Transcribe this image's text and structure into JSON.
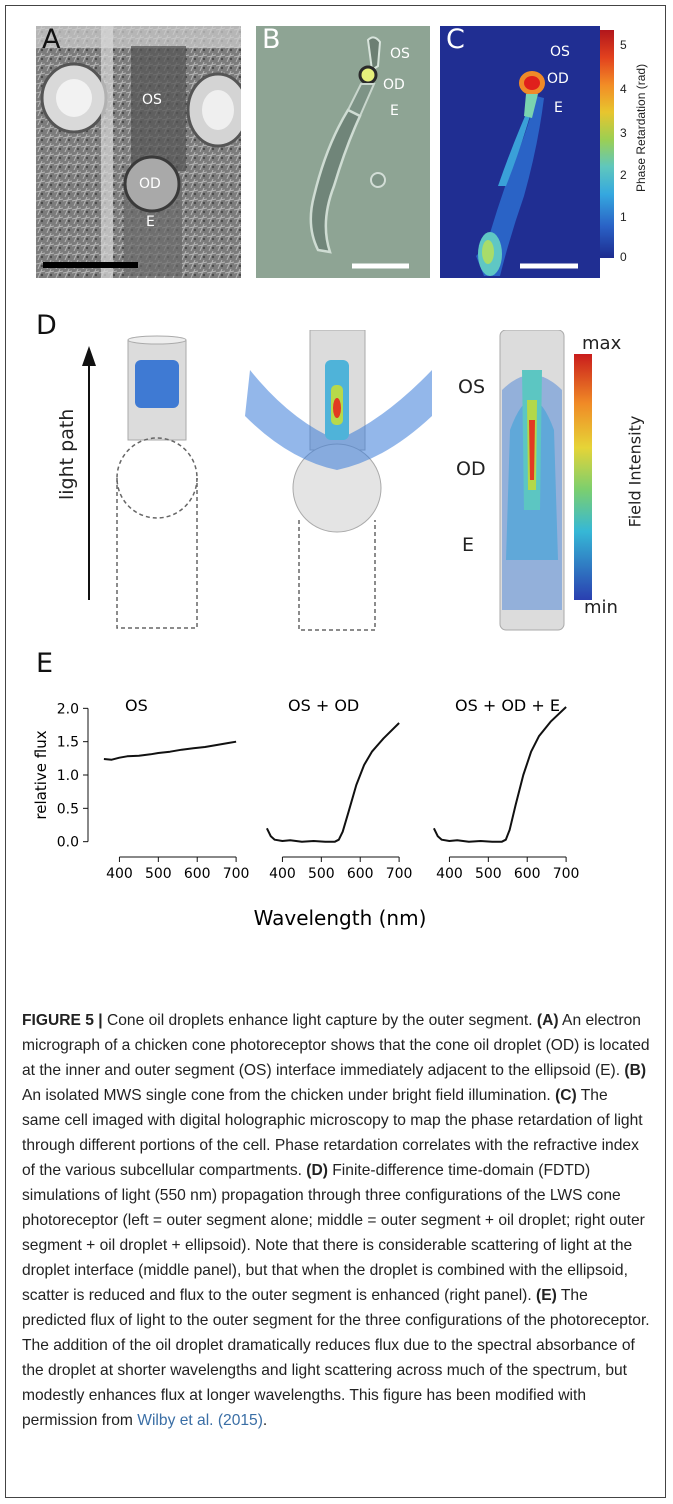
{
  "panels": {
    "A": {
      "label": "A",
      "os": "OS",
      "od": "OD",
      "e": "E"
    },
    "B": {
      "label": "B",
      "os": "OS",
      "od": "OD",
      "e": "E"
    },
    "C": {
      "label": "C",
      "os": "OS",
      "od": "OD",
      "e": "E",
      "colorbar_title": "Phase Retardation (rad)",
      "colorbar_ticks": [
        "5",
        "4",
        "3",
        "2",
        "1",
        "0"
      ]
    },
    "D": {
      "label": "D",
      "axis_label": "light path",
      "os": "OS",
      "od": "OD",
      "e": "E",
      "colorbar_title": "Field Intensity",
      "colorbar_max": "max",
      "colorbar_min": "min"
    },
    "E": {
      "label": "E"
    }
  },
  "chart_data": [
    {
      "type": "line",
      "title": "OS",
      "xlabel": "Wavelength (nm)",
      "ylabel": "relative flux",
      "xlim": [
        350,
        710
      ],
      "ylim": [
        -0.05,
        2.05
      ],
      "xticks": [
        400,
        500,
        600,
        700
      ],
      "yticks": [
        0.0,
        0.5,
        1.0,
        1.5,
        2.0
      ],
      "x": [
        360,
        380,
        400,
        420,
        450,
        480,
        500,
        530,
        560,
        590,
        620,
        650,
        680,
        700
      ],
      "y": [
        1.24,
        1.23,
        1.26,
        1.28,
        1.29,
        1.31,
        1.33,
        1.35,
        1.38,
        1.4,
        1.42,
        1.45,
        1.48,
        1.5
      ]
    },
    {
      "type": "line",
      "title": "OS + OD",
      "xlabel": "Wavelength (nm)",
      "ylabel": "",
      "xlim": [
        350,
        710
      ],
      "ylim": [
        -0.05,
        2.05
      ],
      "xticks": [
        400,
        500,
        600,
        700
      ],
      "yticks": [],
      "x": [
        360,
        370,
        380,
        400,
        420,
        450,
        480,
        510,
        535,
        545,
        555,
        570,
        590,
        610,
        630,
        660,
        700
      ],
      "y": [
        0.2,
        0.08,
        0.03,
        0.01,
        0.02,
        0.0,
        0.01,
        0.0,
        0.0,
        0.03,
        0.15,
        0.45,
        0.85,
        1.15,
        1.35,
        1.55,
        1.78
      ]
    },
    {
      "type": "line",
      "title": "OS + OD + E",
      "xlabel": "Wavelength (nm)",
      "ylabel": "",
      "xlim": [
        350,
        710
      ],
      "ylim": [
        -0.05,
        2.05
      ],
      "xticks": [
        400,
        500,
        600,
        700
      ],
      "yticks": [],
      "x": [
        360,
        370,
        380,
        400,
        420,
        450,
        480,
        510,
        535,
        545,
        555,
        570,
        590,
        610,
        630,
        660,
        700
      ],
      "y": [
        0.2,
        0.08,
        0.03,
        0.01,
        0.02,
        0.0,
        0.01,
        0.0,
        0.0,
        0.03,
        0.18,
        0.55,
        1.0,
        1.35,
        1.58,
        1.8,
        2.02
      ]
    }
  ],
  "caption": {
    "lead": "FIGURE 5 |",
    "intro": " Cone oil droplets enhance light capture by the outer segment. ",
    "a_tag": "(A)",
    "a_text": " An electron micrograph of a chicken cone photoreceptor shows that the cone oil droplet (OD) is located at the inner and outer segment (OS) interface immediately adjacent to the ellipsoid (E). ",
    "b_tag": "(B)",
    "b_text": " An isolated MWS single cone from the chicken under bright field illumination. ",
    "c_tag": "(C)",
    "c_text": " The same cell imaged with digital holographic microscopy to map the phase retardation of light through different portions of the cell. Phase retardation correlates with the refractive index of the various subcellular compartments. ",
    "d_tag": "(D)",
    "d_text": " Finite-difference time-domain (FDTD) simulations of light (550 nm) propagation through three configurations of the LWS cone photoreceptor (left = outer segment alone; middle = outer segment + oil droplet; right outer segment + oil droplet + ellipsoid). Note that there is considerable scattering of light at the droplet interface (middle panel), but that when the droplet is combined with the ellipsoid, scatter is reduced and flux to the outer segment is enhanced (right panel). ",
    "e_tag": "(E)",
    "e_text": " The predicted flux of light to the outer segment for the three configurations of the photoreceptor. The addition of the oil droplet dramatically reduces flux due to the spectral absorbance of the droplet at shorter wavelengths and light scattering across much of the spectrum, but modestly enhances flux at longer wavelengths. This figure has been modified with permission from ",
    "ref": "Wilby et al. (2015)",
    "end": "."
  }
}
